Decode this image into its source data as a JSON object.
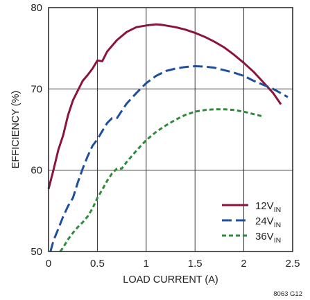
{
  "chart_data": {
    "type": "line",
    "xlabel": "LOAD CURRENT (A)",
    "ylabel": "EFFICIENCY (%)",
    "xlim": [
      0,
      2.5
    ],
    "ylim": [
      50,
      80
    ],
    "x_ticks": [
      "0",
      "0.5",
      "1",
      "1.5",
      "2",
      "2.5"
    ],
    "y_ticks": [
      "50",
      "60",
      "70",
      "80"
    ],
    "grid": true,
    "legend_position": "bottom-right",
    "figure_ref": "8063 G12",
    "series": [
      {
        "name": "12V",
        "name_sub": "IN",
        "color": "#8b1538",
        "dash": "solid",
        "x": [
          0.0,
          0.05,
          0.1,
          0.15,
          0.2,
          0.25,
          0.3,
          0.35,
          0.4,
          0.45,
          0.5,
          0.55,
          0.6,
          0.7,
          0.8,
          0.9,
          1.0,
          1.1,
          1.15,
          1.2,
          1.3,
          1.4,
          1.5,
          1.6,
          1.7,
          1.8,
          1.9,
          2.0,
          2.1,
          2.2,
          2.3,
          2.38
        ],
        "y": [
          57.7,
          60.0,
          62.5,
          64.3,
          66.8,
          68.6,
          69.8,
          71.0,
          71.7,
          72.5,
          73.5,
          73.4,
          74.6,
          76.0,
          77.0,
          77.6,
          77.8,
          77.95,
          77.9,
          77.8,
          77.6,
          77.3,
          76.9,
          76.4,
          75.8,
          75.1,
          74.2,
          73.2,
          72.1,
          70.8,
          69.5,
          68.1
        ]
      },
      {
        "name": "24V",
        "name_sub": "IN",
        "color": "#1f4e9c",
        "dash": "long-dash",
        "x": [
          0.02,
          0.05,
          0.1,
          0.15,
          0.2,
          0.25,
          0.3,
          0.35,
          0.4,
          0.45,
          0.5,
          0.55,
          0.6,
          0.65,
          0.7,
          0.8,
          0.9,
          1.0,
          1.1,
          1.2,
          1.3,
          1.4,
          1.5,
          1.6,
          1.7,
          1.8,
          1.9,
          2.0,
          2.1,
          2.2,
          2.3,
          2.45
        ],
        "y": [
          50.0,
          51.3,
          52.8,
          54.3,
          55.6,
          56.6,
          58.5,
          60.2,
          61.7,
          63.0,
          63.8,
          64.8,
          65.8,
          66.4,
          66.4,
          68.2,
          69.5,
          70.7,
          71.6,
          72.2,
          72.5,
          72.7,
          72.8,
          72.75,
          72.6,
          72.3,
          72.0,
          71.6,
          71.0,
          70.5,
          70.0,
          69.0
        ]
      },
      {
        "name": "36V",
        "name_sub": "IN",
        "color": "#2e8b3a",
        "dash": "short-dash",
        "x": [
          0.12,
          0.15,
          0.2,
          0.25,
          0.3,
          0.35,
          0.4,
          0.45,
          0.5,
          0.55,
          0.6,
          0.65,
          0.7,
          0.75,
          0.8,
          0.9,
          1.0,
          1.1,
          1.2,
          1.3,
          1.4,
          1.5,
          1.6,
          1.7,
          1.8,
          1.9,
          2.0,
          2.1,
          2.2
        ],
        "y": [
          50.0,
          50.5,
          51.5,
          52.3,
          53.0,
          53.6,
          54.3,
          55.3,
          56.6,
          57.6,
          58.7,
          59.6,
          60.2,
          60.2,
          61.0,
          62.4,
          63.7,
          64.7,
          65.5,
          66.2,
          66.8,
          67.2,
          67.4,
          67.5,
          67.5,
          67.4,
          67.2,
          66.9,
          66.6
        ]
      }
    ]
  }
}
